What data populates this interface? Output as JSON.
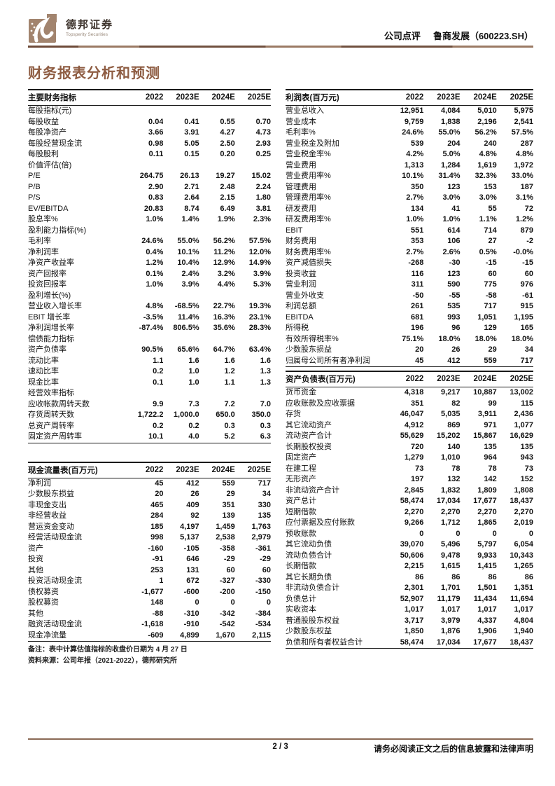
{
  "header": {
    "brand": "德邦证券",
    "brand_sub": "Topsperity Securities",
    "doc_type": "公司点评",
    "company": "鲁商发展（600223.SH）"
  },
  "page_title": "财务报表分析和预测",
  "colors": {
    "accent": "#8E5C42",
    "logo_brown": "#A2846E",
    "rule_brown": "#8A6A55"
  },
  "tables": {
    "key_metrics": {
      "title": "主要财务指标",
      "columns": [
        "2022",
        "2023E",
        "2024E",
        "2025E"
      ],
      "rows": [
        {
          "section": "每股指标(元)"
        },
        {
          "label": "每股收益",
          "values": [
            "0.04",
            "0.41",
            "0.55",
            "0.70"
          ]
        },
        {
          "label": "每股净资产",
          "values": [
            "3.66",
            "3.91",
            "4.27",
            "4.73"
          ]
        },
        {
          "label": "每股经营现金流",
          "values": [
            "0.98",
            "5.05",
            "2.50",
            "2.93"
          ]
        },
        {
          "label": "每股股利",
          "values": [
            "0.11",
            "0.15",
            "0.20",
            "0.25"
          ]
        },
        {
          "section": "价值评估(倍)"
        },
        {
          "label": "P/E",
          "values": [
            "264.75",
            "26.13",
            "19.27",
            "15.02"
          ]
        },
        {
          "label": "P/B",
          "values": [
            "2.90",
            "2.71",
            "2.48",
            "2.24"
          ]
        },
        {
          "label": "P/S",
          "values": [
            "0.83",
            "2.64",
            "2.15",
            "1.80"
          ]
        },
        {
          "label": "EV/EBITDA",
          "values": [
            "20.83",
            "8.74",
            "6.49",
            "3.81"
          ]
        },
        {
          "label": "股息率%",
          "values": [
            "1.0%",
            "1.4%",
            "1.9%",
            "2.3%"
          ]
        },
        {
          "section": "盈利能力指标(%)"
        },
        {
          "label": "毛利率",
          "values": [
            "24.6%",
            "55.0%",
            "56.2%",
            "57.5%"
          ]
        },
        {
          "label": "净利润率",
          "values": [
            "0.4%",
            "10.1%",
            "11.2%",
            "12.0%"
          ]
        },
        {
          "label": "净资产收益率",
          "values": [
            "1.2%",
            "10.4%",
            "12.9%",
            "14.9%"
          ]
        },
        {
          "label": "资产回报率",
          "values": [
            "0.1%",
            "2.4%",
            "3.2%",
            "3.9%"
          ]
        },
        {
          "label": "投资回报率",
          "values": [
            "1.0%",
            "3.9%",
            "4.4%",
            "5.3%"
          ]
        },
        {
          "section": "盈利增长(%)"
        },
        {
          "label": "营业收入增长率",
          "values": [
            "4.8%",
            "-68.5%",
            "22.7%",
            "19.3%"
          ]
        },
        {
          "label": "EBIT 增长率",
          "values": [
            "-3.5%",
            "11.4%",
            "16.3%",
            "23.1%"
          ]
        },
        {
          "label": "净利润增长率",
          "values": [
            "-87.4%",
            "806.5%",
            "35.6%",
            "28.3%"
          ]
        },
        {
          "section": "偿债能力指标"
        },
        {
          "label": "资产负债率",
          "values": [
            "90.5%",
            "65.6%",
            "64.7%",
            "63.4%"
          ]
        },
        {
          "label": "流动比率",
          "values": [
            "1.1",
            "1.6",
            "1.6",
            "1.6"
          ]
        },
        {
          "label": "速动比率",
          "values": [
            "0.2",
            "1.0",
            "1.2",
            "1.3"
          ]
        },
        {
          "label": "现金比率",
          "values": [
            "0.1",
            "1.0",
            "1.1",
            "1.3"
          ]
        },
        {
          "section": "经营效率指标"
        },
        {
          "label": "应收帐款周转天数",
          "values": [
            "9.9",
            "7.3",
            "7.2",
            "7.0"
          ]
        },
        {
          "label": "存货周转天数",
          "values": [
            "1,722.2",
            "1,000.0",
            "650.0",
            "350.0"
          ]
        },
        {
          "label": "总资产周转率",
          "values": [
            "0.2",
            "0.2",
            "0.3",
            "0.3"
          ]
        },
        {
          "label": "固定资产周转率",
          "values": [
            "10.1",
            "4.0",
            "5.2",
            "6.3"
          ]
        }
      ]
    },
    "cash_flow": {
      "title": "现金流量表(百万元)",
      "columns": [
        "2022",
        "2023E",
        "2024E",
        "2025E"
      ],
      "rows": [
        {
          "label": "净利润",
          "values": [
            "45",
            "412",
            "559",
            "717"
          ]
        },
        {
          "label": "少数股东损益",
          "values": [
            "20",
            "26",
            "29",
            "34"
          ]
        },
        {
          "label": "非现金支出",
          "values": [
            "465",
            "409",
            "351",
            "330"
          ]
        },
        {
          "label": "非经营收益",
          "values": [
            "284",
            "92",
            "139",
            "135"
          ]
        },
        {
          "label": "营运资金变动",
          "values": [
            "185",
            "4,197",
            "1,459",
            "1,763"
          ]
        },
        {
          "label": "经营活动现金流",
          "values": [
            "998",
            "5,137",
            "2,538",
            "2,979"
          ]
        },
        {
          "label": "资产",
          "values": [
            "-160",
            "-105",
            "-358",
            "-361"
          ]
        },
        {
          "label": "投资",
          "values": [
            "-91",
            "646",
            "-29",
            "-29"
          ]
        },
        {
          "label": "其他",
          "values": [
            "253",
            "131",
            "60",
            "60"
          ]
        },
        {
          "label": "投资活动现金流",
          "values": [
            "1",
            "672",
            "-327",
            "-330"
          ]
        },
        {
          "label": "债权募资",
          "values": [
            "-1,677",
            "-600",
            "-200",
            "-150"
          ]
        },
        {
          "label": "股权募资",
          "values": [
            "148",
            "0",
            "0",
            "0"
          ]
        },
        {
          "label": "其他",
          "values": [
            "-88",
            "-310",
            "-342",
            "-384"
          ]
        },
        {
          "label": "融资活动现金流",
          "values": [
            "-1,618",
            "-910",
            "-542",
            "-534"
          ]
        },
        {
          "label": "现金净流量",
          "values": [
            "-609",
            "4,899",
            "1,670",
            "2,115"
          ]
        }
      ]
    },
    "income": {
      "title": "利润表(百万元)",
      "columns": [
        "2022",
        "2023E",
        "2024E",
        "2025E"
      ],
      "rows": [
        {
          "label": "营业总收入",
          "values": [
            "12,951",
            "4,084",
            "5,010",
            "5,975"
          ]
        },
        {
          "label": "营业成本",
          "values": [
            "9,759",
            "1,838",
            "2,196",
            "2,541"
          ]
        },
        {
          "label": "毛利率%",
          "values": [
            "24.6%",
            "55.0%",
            "56.2%",
            "57.5%"
          ]
        },
        {
          "label": "营业税金及附加",
          "values": [
            "539",
            "204",
            "240",
            "287"
          ]
        },
        {
          "label": "营业税金率%",
          "values": [
            "4.2%",
            "5.0%",
            "4.8%",
            "4.8%"
          ]
        },
        {
          "label": "营业费用",
          "values": [
            "1,313",
            "1,284",
            "1,619",
            "1,972"
          ]
        },
        {
          "label": "营业费用率%",
          "values": [
            "10.1%",
            "31.4%",
            "32.3%",
            "33.0%"
          ]
        },
        {
          "label": "管理费用",
          "values": [
            "350",
            "123",
            "153",
            "187"
          ]
        },
        {
          "label": "管理费用率%",
          "values": [
            "2.7%",
            "3.0%",
            "3.0%",
            "3.1%"
          ]
        },
        {
          "label": "研发费用",
          "values": [
            "134",
            "41",
            "55",
            "72"
          ]
        },
        {
          "label": "研发费用率%",
          "values": [
            "1.0%",
            "1.0%",
            "1.1%",
            "1.2%"
          ]
        },
        {
          "label": "EBIT",
          "values": [
            "551",
            "614",
            "714",
            "879"
          ]
        },
        {
          "label": "财务费用",
          "values": [
            "353",
            "106",
            "27",
            "-2"
          ]
        },
        {
          "label": "财务费用率%",
          "values": [
            "2.7%",
            "2.6%",
            "0.5%",
            "-0.0%"
          ]
        },
        {
          "label": "资产减值损失",
          "values": [
            "-268",
            "-30",
            "-15",
            "-15"
          ]
        },
        {
          "label": "投资收益",
          "values": [
            "116",
            "123",
            "60",
            "60"
          ]
        },
        {
          "label": "营业利润",
          "values": [
            "311",
            "590",
            "775",
            "976"
          ]
        },
        {
          "label": "营业外收支",
          "values": [
            "-50",
            "-55",
            "-58",
            "-61"
          ]
        },
        {
          "label": "利润总额",
          "values": [
            "261",
            "535",
            "717",
            "915"
          ]
        },
        {
          "label": "EBITDA",
          "values": [
            "681",
            "993",
            "1,051",
            "1,195"
          ]
        },
        {
          "label": "所得税",
          "values": [
            "196",
            "96",
            "129",
            "165"
          ]
        },
        {
          "label": "有效所得税率%",
          "values": [
            "75.1%",
            "18.0%",
            "18.0%",
            "18.0%"
          ]
        },
        {
          "label": "少数股东损益",
          "values": [
            "20",
            "26",
            "29",
            "34"
          ]
        },
        {
          "label": "归属母公司所有者净利润",
          "values": [
            "45",
            "412",
            "559",
            "717"
          ]
        }
      ]
    },
    "balance": {
      "title": "资产负债表(百万元)",
      "columns": [
        "2022",
        "2023E",
        "2024E",
        "2025E"
      ],
      "rows": [
        {
          "label": "货币资金",
          "values": [
            "4,318",
            "9,217",
            "10,887",
            "13,002"
          ]
        },
        {
          "label": "应收账款及应收票据",
          "values": [
            "351",
            "82",
            "99",
            "115"
          ]
        },
        {
          "label": "存货",
          "values": [
            "46,047",
            "5,035",
            "3,911",
            "2,436"
          ]
        },
        {
          "label": "其它流动资产",
          "values": [
            "4,912",
            "869",
            "971",
            "1,077"
          ]
        },
        {
          "label": "流动资产合计",
          "values": [
            "55,629",
            "15,202",
            "15,867",
            "16,629"
          ]
        },
        {
          "label": "长期股权投资",
          "values": [
            "720",
            "140",
            "135",
            "135"
          ]
        },
        {
          "label": "固定资产",
          "values": [
            "1,279",
            "1,010",
            "964",
            "943"
          ]
        },
        {
          "label": "在建工程",
          "values": [
            "73",
            "78",
            "78",
            "73"
          ]
        },
        {
          "label": "无形资产",
          "values": [
            "197",
            "132",
            "142",
            "152"
          ]
        },
        {
          "label": "非流动资产合计",
          "values": [
            "2,845",
            "1,832",
            "1,809",
            "1,808"
          ]
        },
        {
          "label": "资产总计",
          "values": [
            "58,474",
            "17,034",
            "17,677",
            "18,437"
          ]
        },
        {
          "label": "短期借款",
          "values": [
            "2,270",
            "2,270",
            "2,270",
            "2,270"
          ]
        },
        {
          "label": "应付票据及应付账款",
          "values": [
            "9,266",
            "1,712",
            "1,865",
            "2,019"
          ]
        },
        {
          "label": "预收账款",
          "values": [
            "0",
            "0",
            "0",
            "0"
          ]
        },
        {
          "label": "其它流动负债",
          "values": [
            "39,070",
            "5,496",
            "5,797",
            "6,054"
          ]
        },
        {
          "label": "流动负债合计",
          "values": [
            "50,606",
            "9,478",
            "9,933",
            "10,343"
          ]
        },
        {
          "label": "长期借款",
          "values": [
            "2,215",
            "1,615",
            "1,415",
            "1,265"
          ]
        },
        {
          "label": "其它长期负债",
          "values": [
            "86",
            "86",
            "86",
            "86"
          ]
        },
        {
          "label": "非流动负债合计",
          "values": [
            "2,301",
            "1,701",
            "1,501",
            "1,351"
          ]
        },
        {
          "label": "负债总计",
          "values": [
            "52,907",
            "11,179",
            "11,434",
            "11,694"
          ]
        },
        {
          "label": "实收资本",
          "values": [
            "1,017",
            "1,017",
            "1,017",
            "1,017"
          ]
        },
        {
          "label": "普通股股东权益",
          "values": [
            "3,717",
            "3,979",
            "4,337",
            "4,804"
          ]
        },
        {
          "label": "少数股东权益",
          "values": [
            "1,850",
            "1,876",
            "1,906",
            "1,940"
          ]
        },
        {
          "label": "负债和所有者权益合计",
          "values": [
            "58,474",
            "17,034",
            "17,677",
            "18,437"
          ]
        }
      ]
    }
  },
  "notes": [
    "备注：表中计算估值指标的收盘价日期为 4 月 27 日",
    "资料来源：公司年报（2021-2022），德邦研究所"
  ],
  "footer": {
    "page": "2 / 3",
    "disclaimer": "请务必阅读正文之后的信息披露和法律声明"
  }
}
